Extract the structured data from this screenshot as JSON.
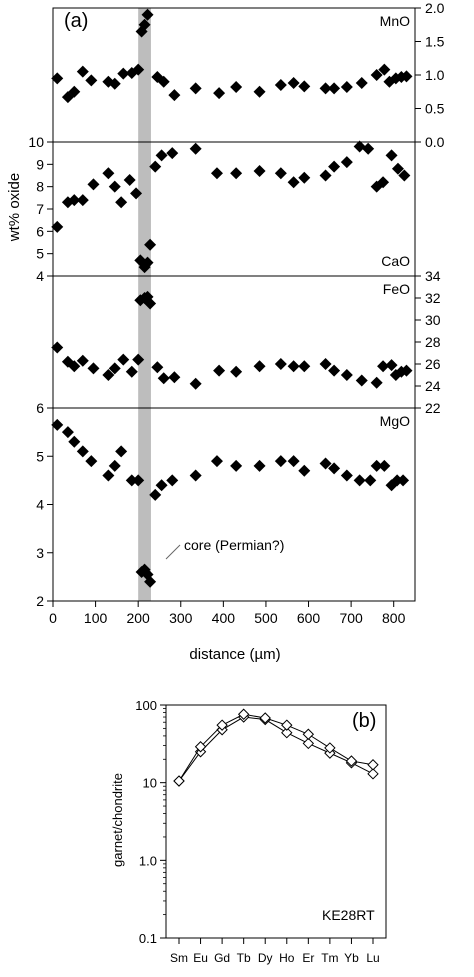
{
  "panel_a": {
    "label": "(a)",
    "ylabel": "wt% oxide",
    "xlabel": "distance (µm)",
    "annotation": "core (Permian?)"
  },
  "panel_b": {
    "label": "(b)",
    "ylabel": "garnet/chondrite",
    "sample": "KE28RT"
  },
  "chart_data": [
    {
      "type": "scatter",
      "panel": "a",
      "x_range": [
        0,
        850
      ],
      "xticks": [
        0,
        100,
        200,
        300,
        400,
        500,
        600,
        700,
        800
      ],
      "highlight_band": [
        200,
        230
      ],
      "subplots": [
        {
          "name": "MnO",
          "axis_side": "right",
          "ylim": [
            0,
            2.0
          ],
          "yticks": [
            "0.0",
            "0.5",
            "1.0",
            "1.5",
            "2.0"
          ],
          "series": [
            {
              "x": [
                10,
                35,
                50,
                70,
                90,
                130,
                145,
                165,
                185,
                200,
                208,
                215,
                222,
                245,
                260,
                285,
                335,
                390,
                430,
                485,
                535,
                565,
                590,
                640,
                660,
                690,
                725,
                760,
                778,
                790,
                805,
                818,
                830
              ],
              "y": [
                0.95,
                0.67,
                0.75,
                1.05,
                0.92,
                0.9,
                0.87,
                1.02,
                1.03,
                1.08,
                1.65,
                1.75,
                1.9,
                0.97,
                0.9,
                0.7,
                0.8,
                0.73,
                0.82,
                0.75,
                0.85,
                0.88,
                0.83,
                0.8,
                0.8,
                0.82,
                0.88,
                1.0,
                1.08,
                0.9,
                0.95,
                0.97,
                0.98
              ]
            }
          ]
        },
        {
          "name": "CaO",
          "axis_side": "left",
          "ylim": [
            4,
            10
          ],
          "yticks": [
            "4",
            "5",
            "6",
            "7",
            "8",
            "9",
            "10"
          ],
          "series": [
            {
              "x": [
                10,
                35,
                50,
                70,
                95,
                130,
                145,
                160,
                180,
                195,
                205,
                215,
                222,
                228,
                240,
                255,
                280,
                335,
                385,
                430,
                485,
                535,
                565,
                590,
                640,
                660,
                690,
                720,
                740,
                760,
                775,
                795,
                810,
                825
              ],
              "y": [
                6.2,
                7.3,
                7.4,
                7.4,
                8.1,
                8.6,
                8.0,
                7.3,
                8.3,
                7.7,
                4.7,
                4.4,
                4.6,
                5.4,
                8.9,
                9.4,
                9.5,
                9.7,
                8.6,
                8.6,
                8.7,
                8.6,
                8.2,
                8.4,
                8.5,
                8.9,
                9.1,
                9.8,
                9.7,
                8.0,
                8.2,
                9.4,
                8.8,
                8.5
              ]
            }
          ]
        },
        {
          "name": "FeO",
          "axis_side": "right",
          "ylim": [
            22,
            34
          ],
          "yticks": [
            "22",
            "24",
            "26",
            "28",
            "30",
            "32",
            "34"
          ],
          "series": [
            {
              "x": [
                10,
                35,
                50,
                70,
                95,
                130,
                145,
                165,
                185,
                200,
                205,
                215,
                222,
                228,
                245,
                260,
                285,
                335,
                390,
                430,
                485,
                535,
                565,
                590,
                640,
                660,
                690,
                725,
                760,
                775,
                795,
                805,
                818,
                830
              ],
              "y": [
                27.5,
                26.2,
                25.8,
                26.3,
                25.6,
                25.0,
                25.6,
                26.4,
                25.3,
                26.4,
                31.8,
                32.0,
                32.1,
                31.5,
                25.7,
                24.7,
                24.8,
                24.2,
                25.4,
                25.3,
                25.8,
                26.0,
                25.8,
                25.8,
                26.0,
                25.4,
                25.0,
                24.5,
                24.3,
                25.8,
                25.9,
                25.0,
                25.3,
                25.4
              ]
            }
          ]
        },
        {
          "name": "MgO",
          "axis_side": "left",
          "ylim": [
            2,
            6
          ],
          "yticks": [
            "2",
            "3",
            "4",
            "5",
            "6"
          ],
          "series": [
            {
              "x": [
                10,
                35,
                50,
                70,
                90,
                130,
                145,
                160,
                185,
                200,
                208,
                215,
                222,
                228,
                240,
                255,
                280,
                335,
                385,
                430,
                485,
                535,
                565,
                590,
                640,
                660,
                690,
                720,
                745,
                760,
                778,
                795,
                808,
                822
              ],
              "y": [
                5.65,
                5.5,
                5.3,
                5.1,
                4.9,
                4.6,
                4.8,
                5.1,
                4.5,
                4.5,
                2.6,
                2.65,
                2.55,
                2.4,
                4.2,
                4.4,
                4.5,
                4.6,
                4.9,
                4.8,
                4.8,
                4.9,
                4.9,
                4.7,
                4.85,
                4.75,
                4.6,
                4.5,
                4.5,
                4.8,
                4.8,
                4.4,
                4.5,
                4.5
              ]
            }
          ]
        }
      ]
    },
    {
      "type": "line",
      "panel": "b",
      "y_scale": "log",
      "ylim": [
        0.1,
        100
      ],
      "yticks": [
        "0.1",
        "1.0",
        "10",
        "100"
      ],
      "categories": [
        "Sm",
        "Eu",
        "Gd",
        "Tb",
        "Dy",
        "Ho",
        "Er",
        "Tm",
        "Yb",
        "Lu"
      ],
      "series": [
        {
          "values": [
            10.5,
            25,
            48,
            70,
            65,
            44,
            32,
            24,
            18,
            13
          ]
        },
        {
          "values": [
            10.5,
            29,
            55,
            76,
            68,
            55,
            42,
            28,
            19,
            17
          ]
        }
      ]
    }
  ]
}
